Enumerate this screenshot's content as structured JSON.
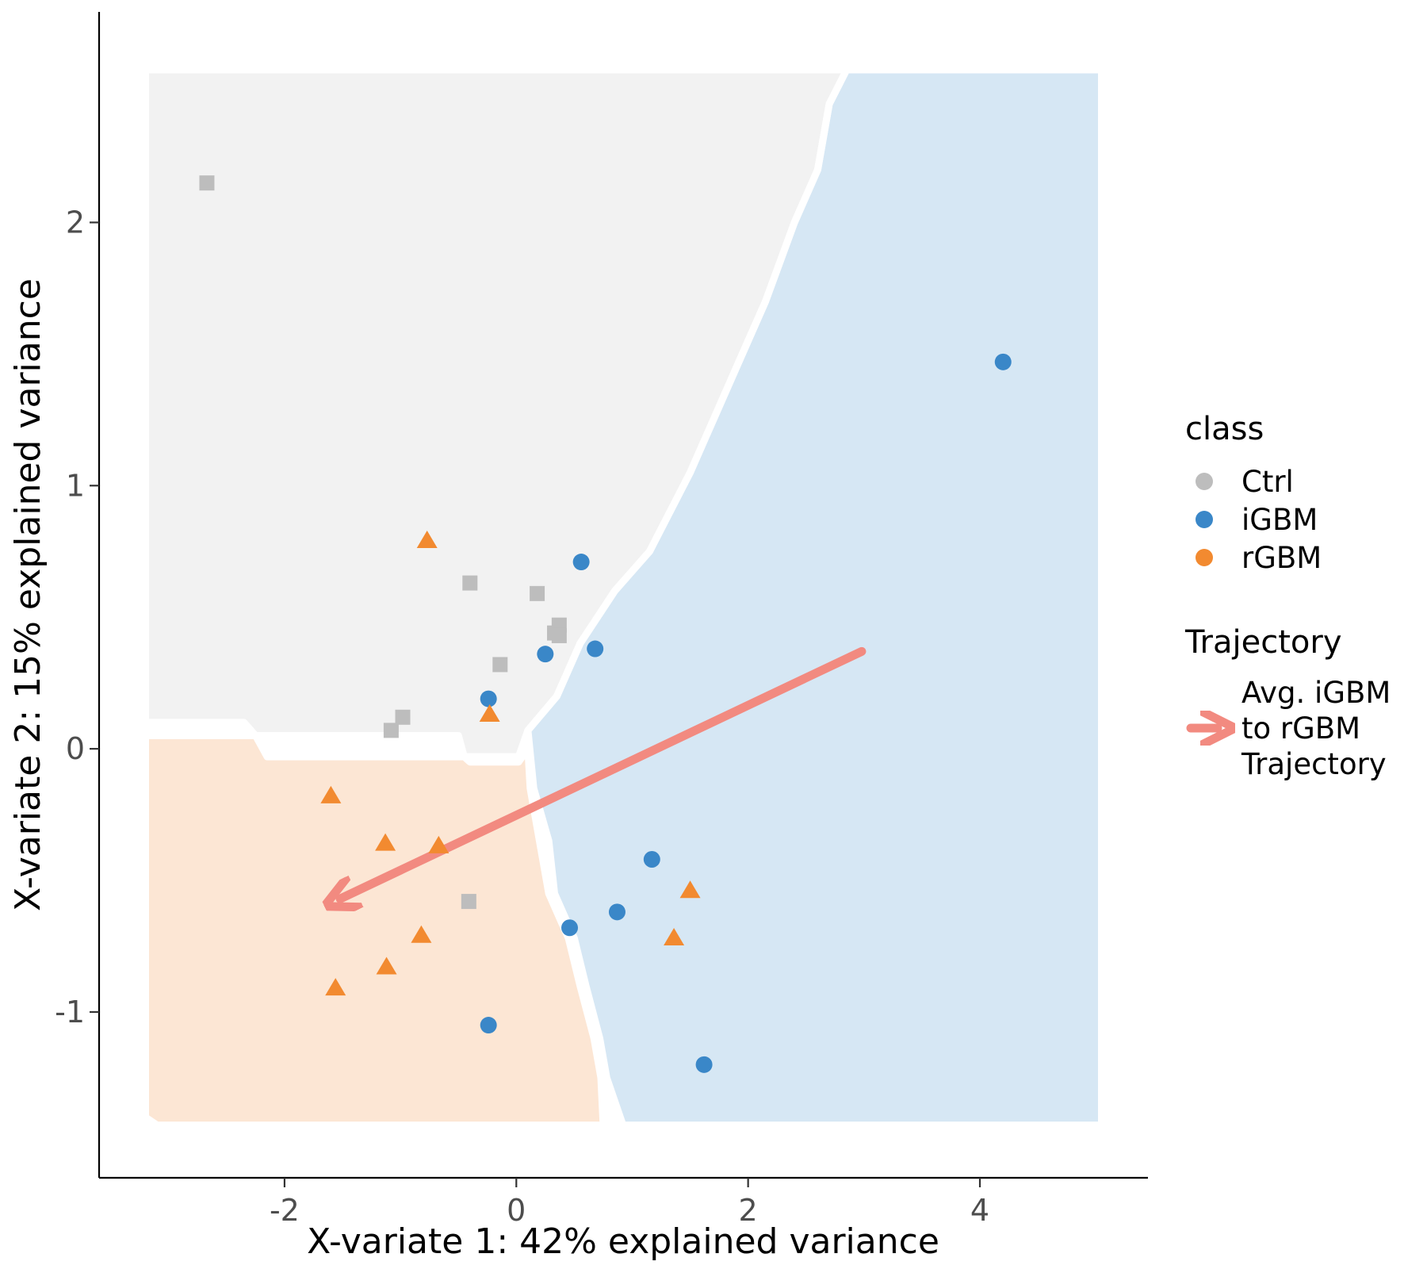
{
  "chart_data": {
    "type": "scatter",
    "title": "",
    "xlabel": "X-variate 1: 42% explained variance",
    "ylabel": "X-variate 2: 15% explained variance",
    "xlim": [
      -3.6,
      5.45
    ],
    "ylim": [
      -1.63,
      2.8
    ],
    "x_ticks": [
      -2,
      0,
      2,
      4
    ],
    "y_ticks": [
      -1,
      0,
      1,
      2
    ],
    "grid": false,
    "legend_position": "right",
    "colors": {
      "Ctrl": "#bdbdbd",
      "iGBM": "#3a87c8",
      "rGBM": "#f28a30",
      "region_Ctrl": "#f2f2f2",
      "region_iGBM": "#d6e7f4",
      "region_rGBM": "#fce6d4",
      "trajectory": "#f28a80"
    },
    "legend": {
      "class_title": "class",
      "class_entries": [
        "Ctrl",
        "iGBM",
        "rGBM"
      ],
      "trajectory_title": "Trajectory",
      "trajectory_label_lines": [
        "Avg. iGBM",
        "to rGBM",
        "Trajectory"
      ]
    },
    "series": [
      {
        "name": "Ctrl",
        "marker": "square",
        "points": [
          [
            -2.67,
            2.15
          ],
          [
            -0.4,
            0.63
          ],
          [
            0.18,
            0.59
          ],
          [
            0.37,
            0.47
          ],
          [
            0.33,
            0.44
          ],
          [
            0.37,
            0.43
          ],
          [
            -0.14,
            0.32
          ],
          [
            -0.98,
            0.12
          ],
          [
            -1.08,
            0.07
          ],
          [
            -0.41,
            -0.58
          ]
        ]
      },
      {
        "name": "iGBM",
        "marker": "circle",
        "points": [
          [
            4.2,
            1.47
          ],
          [
            0.56,
            0.71
          ],
          [
            0.68,
            0.38
          ],
          [
            0.25,
            0.36
          ],
          [
            -0.24,
            0.19
          ],
          [
            1.17,
            -0.42
          ],
          [
            0.87,
            -0.62
          ],
          [
            0.46,
            -0.68
          ],
          [
            -0.24,
            -1.05
          ],
          [
            1.62,
            -1.2
          ]
        ]
      },
      {
        "name": "rGBM",
        "marker": "triangle",
        "points": [
          [
            -0.77,
            0.79
          ],
          [
            -0.23,
            0.13
          ],
          [
            -1.6,
            -0.18
          ],
          [
            -1.13,
            -0.36
          ],
          [
            -0.67,
            -0.37
          ],
          [
            1.5,
            -0.54
          ],
          [
            1.36,
            -0.72
          ],
          [
            -0.82,
            -0.71
          ],
          [
            -1.12,
            -0.83
          ],
          [
            -1.56,
            -0.91
          ]
        ]
      }
    ],
    "trajectory": {
      "from": [
        2.98,
        0.37
      ],
      "to": [
        -1.52,
        -0.57
      ]
    },
    "regions": [
      {
        "class": "Ctrl",
        "polygon": [
          [
            -3.2,
            2.58
          ],
          [
            2.85,
            2.58
          ],
          [
            2.7,
            2.45
          ],
          [
            2.6,
            2.2
          ],
          [
            2.4,
            2.0
          ],
          [
            2.15,
            1.7
          ],
          [
            1.9,
            1.45
          ],
          [
            1.5,
            1.05
          ],
          [
            1.15,
            0.75
          ],
          [
            0.85,
            0.6
          ],
          [
            0.55,
            0.4
          ],
          [
            0.35,
            0.2
          ],
          [
            0.1,
            0.07
          ],
          [
            0.02,
            -0.03
          ],
          [
            -0.45,
            -0.03
          ],
          [
            -0.5,
            0.05
          ],
          [
            -2.25,
            0.05
          ],
          [
            -2.35,
            0.1
          ],
          [
            -3.2,
            0.1
          ]
        ]
      },
      {
        "class": "iGBM",
        "polygon": [
          [
            2.85,
            2.58
          ],
          [
            5.05,
            2.58
          ],
          [
            5.05,
            -1.43
          ],
          [
            0.92,
            -1.43
          ],
          [
            0.78,
            -1.25
          ],
          [
            0.72,
            -1.1
          ],
          [
            0.6,
            -0.9
          ],
          [
            0.5,
            -0.72
          ],
          [
            0.33,
            -0.55
          ],
          [
            0.28,
            -0.35
          ],
          [
            0.15,
            -0.15
          ],
          [
            0.1,
            0.07
          ],
          [
            0.35,
            0.2
          ],
          [
            0.55,
            0.4
          ],
          [
            0.85,
            0.6
          ],
          [
            1.15,
            0.75
          ],
          [
            1.5,
            1.05
          ],
          [
            1.9,
            1.45
          ],
          [
            2.15,
            1.7
          ],
          [
            2.4,
            2.0
          ],
          [
            2.6,
            2.2
          ],
          [
            2.7,
            2.45
          ]
        ]
      },
      {
        "class": "rGBM",
        "polygon": [
          [
            -3.2,
            0.05
          ],
          [
            -2.25,
            0.05
          ],
          [
            -2.15,
            -0.03
          ],
          [
            -0.45,
            -0.03
          ],
          [
            -0.4,
            -0.05
          ],
          [
            0.02,
            -0.05
          ],
          [
            0.1,
            0.0
          ],
          [
            0.12,
            -0.15
          ],
          [
            0.2,
            -0.35
          ],
          [
            0.28,
            -0.55
          ],
          [
            0.45,
            -0.72
          ],
          [
            0.55,
            -0.9
          ],
          [
            0.67,
            -1.1
          ],
          [
            0.73,
            -1.25
          ],
          [
            0.75,
            -1.43
          ],
          [
            -3.1,
            -1.43
          ],
          [
            -3.2,
            -1.4
          ]
        ]
      }
    ]
  }
}
